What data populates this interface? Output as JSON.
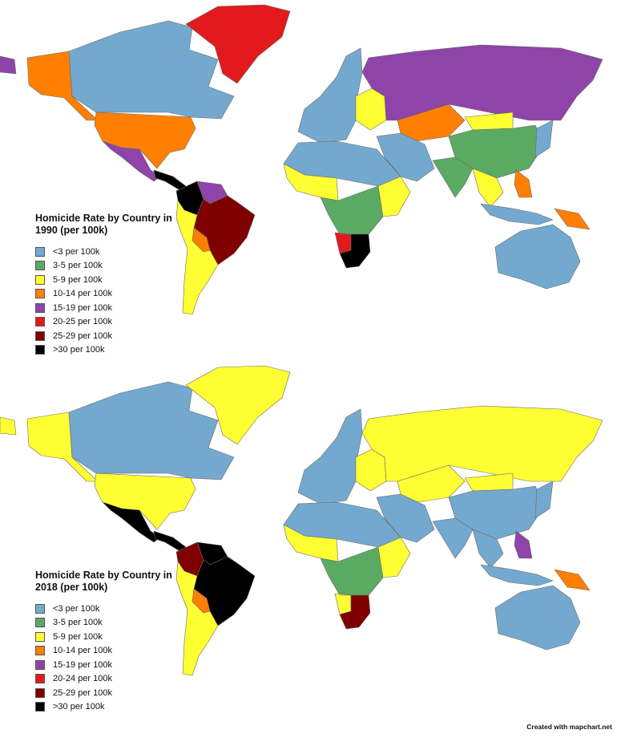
{
  "maps": [
    {
      "id": "1990",
      "title": "Homicide Rate by Country in 1990 (per 100k)",
      "legend": [
        {
          "label": "<3 per 100k",
          "color": "#74a9cf"
        },
        {
          "label": "3-5 per 100k",
          "color": "#5aaa63"
        },
        {
          "label": "5-9 per 100k",
          "color": "#ffff33"
        },
        {
          "label": "10-14 per 100k",
          "color": "#ff7f00"
        },
        {
          "label": "15-19 per 100k",
          "color": "#8e44a8"
        },
        {
          "label": "20-25 per 100k",
          "color": "#e31a1c"
        },
        {
          "label": "25-29 per 100k",
          "color": "#800000"
        },
        {
          "label": ">30 per 100k",
          "color": "#000000"
        }
      ],
      "regions": {
        "canada": "#74a9cf",
        "alaska": "#ff7f00",
        "greenland": "#e31a1c",
        "usa": "#ff7f00",
        "mexico": "#8e44a8",
        "central_america": "#000000",
        "colombia": "#000000",
        "venezuela": "#8e44a8",
        "brazil": "#800000",
        "south_america_rest": "#ffff33",
        "paraguay": "#ff7f00",
        "europe": "#74a9cf",
        "eastern_europe": "#ffff33",
        "russia": "#8e44a8",
        "kazakhstan": "#ff7f00",
        "mongolia": "#ffff33",
        "china": "#5aaa63",
        "india": "#5aaa63",
        "middle_east": "#74a9cf",
        "north_africa": "#74a9cf",
        "west_africa": "#ffff33",
        "central_africa": "#5aaa63",
        "east_africa": "#ffff33",
        "southern_africa": "#000000",
        "namibia": "#e31a1c",
        "southeast_asia": "#ffff33",
        "indonesia": "#74a9cf",
        "philippines": "#ff7f00",
        "png": "#ff7f00",
        "australia": "#74a9cf",
        "japan": "#74a9cf",
        "chukotka": "#8e44a8"
      }
    },
    {
      "id": "2018",
      "title": "Homicide Rate by Country in 2018 (per 100k)",
      "legend": [
        {
          "label": "<3 per 100k",
          "color": "#74a9cf"
        },
        {
          "label": "3-5 per 100k",
          "color": "#5aaa63"
        },
        {
          "label": "5-9 per 100k",
          "color": "#ffff33"
        },
        {
          "label": "10-14 per 100k",
          "color": "#ff7f00"
        },
        {
          "label": "15-19 per 100k",
          "color": "#8e44a8"
        },
        {
          "label": "20-24 per 100k",
          "color": "#e31a1c"
        },
        {
          "label": "25-29 per 100k",
          "color": "#800000"
        },
        {
          "label": ">30 per 100k",
          "color": "#000000"
        }
      ],
      "regions": {
        "canada": "#74a9cf",
        "alaska": "#ffff33",
        "greenland": "#ffff33",
        "usa": "#ffff33",
        "mexico": "#000000",
        "central_america": "#000000",
        "colombia": "#800000",
        "venezuela": "#000000",
        "brazil": "#000000",
        "south_america_rest": "#ffff33",
        "paraguay": "#ff7f00",
        "europe": "#74a9cf",
        "eastern_europe": "#ffff33",
        "russia": "#ffff33",
        "kazakhstan": "#ffff33",
        "mongolia": "#ffff33",
        "china": "#74a9cf",
        "india": "#74a9cf",
        "middle_east": "#74a9cf",
        "north_africa": "#74a9cf",
        "west_africa": "#ffff33",
        "central_africa": "#5aaa63",
        "east_africa": "#ffff33",
        "southern_africa": "#800000",
        "namibia": "#ffff33",
        "southeast_asia": "#74a9cf",
        "indonesia": "#74a9cf",
        "philippines": "#8e44a8",
        "png": "#ff7f00",
        "australia": "#74a9cf",
        "japan": "#74a9cf",
        "chukotka": "#ffff33"
      }
    }
  ],
  "credit": "Created with mapchart.net"
}
